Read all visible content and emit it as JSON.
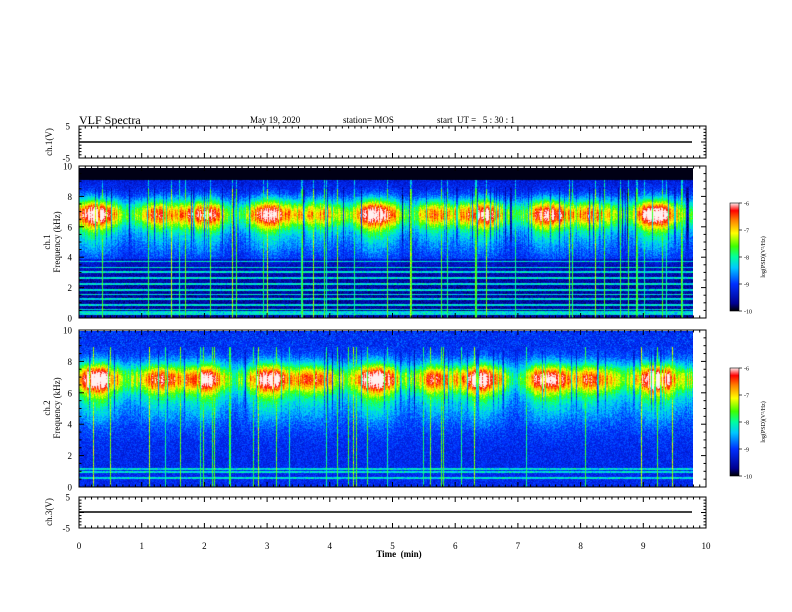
{
  "header": {
    "title": "VLF Spectra",
    "date": "May 19, 2020",
    "station": "station= MOS",
    "start": "start  UT =   5 : 30 : 1"
  },
  "chart_data": {
    "type": "heatmap",
    "x": {
      "label": "Time  (min)",
      "range": [
        0,
        10
      ],
      "ticks": [
        0,
        1,
        2,
        3,
        4,
        5,
        6,
        7,
        8,
        9,
        10
      ],
      "data_end": 9.85
    },
    "panels": [
      {
        "id": "ch1-waveform",
        "ylabel": "ch.1(V)",
        "ylim": [
          -5,
          5
        ],
        "ticks": [
          5,
          "",
          -5
        ],
        "level": -1.3
      },
      {
        "id": "ch1-spectrogram",
        "ylabel_top": "ch.1",
        "ylabel": "Frequency  (kHz)",
        "ylim": [
          0,
          10
        ],
        "ticks": [
          0,
          2,
          4,
          6,
          8,
          10
        ],
        "cutoff_khz": 9.2
      },
      {
        "id": "ch2-spectrogram",
        "ylabel_top": "ch.2",
        "ylabel": "Frequency  (kHz)",
        "ylim": [
          0,
          10
        ],
        "ticks": [
          0,
          2,
          4,
          6,
          8,
          10
        ]
      },
      {
        "id": "ch3-waveform",
        "ylabel": "ch.3(V)",
        "ylim": [
          -5,
          5
        ],
        "ticks": [
          5,
          "",
          -5
        ],
        "level": -1.3
      }
    ],
    "colorbar": {
      "label": "log(PSD)(V²/Hz)",
      "range": [
        -10,
        -6
      ],
      "ticks": [
        -6,
        -7,
        -8,
        -9,
        -10
      ]
    }
  }
}
